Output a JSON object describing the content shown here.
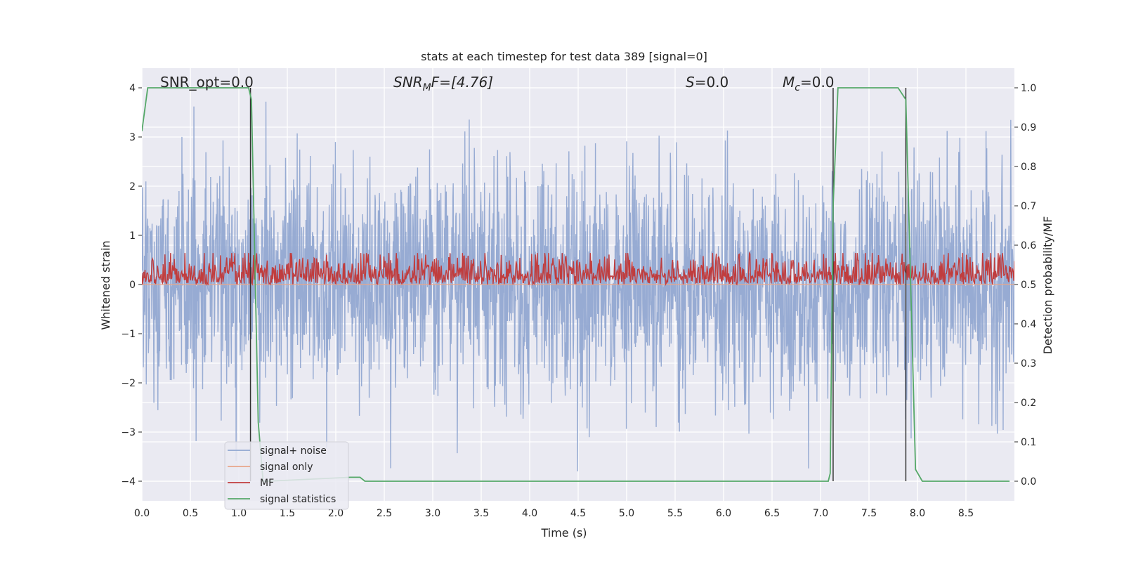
{
  "chart_data": {
    "type": "line",
    "title": "stats at each timestep for test data 389 [signal=0]",
    "xlabel": "Time (s)",
    "ylabel_left": "Whitened strain",
    "ylabel_right": "Detection probability/MF",
    "xlim": [
      0,
      9
    ],
    "ylim_left": [
      -4.4,
      4.4
    ],
    "ylim_right": [
      -0.05,
      1.05
    ],
    "x_ticks": [
      "0.0",
      "0.5",
      "1.0",
      "1.5",
      "2.0",
      "2.5",
      "3.0",
      "3.5",
      "4.0",
      "4.5",
      "5.0",
      "5.5",
      "6.0",
      "6.5",
      "7.0",
      "7.5",
      "8.0",
      "8.5"
    ],
    "x_tick_values": [
      0,
      0.5,
      1,
      1.5,
      2,
      2.5,
      3,
      3.5,
      4,
      4.5,
      5,
      5.5,
      6,
      6.5,
      7,
      7.5,
      8,
      8.5
    ],
    "y_left_ticks": [
      "−4",
      "−3",
      "−2",
      "−1",
      "0",
      "1",
      "2",
      "3",
      "4"
    ],
    "y_left_tick_values": [
      -4,
      -3,
      -2,
      -1,
      0,
      1,
      2,
      3,
      4
    ],
    "y_right_ticks": [
      "0.0",
      "0.1",
      "0.2",
      "0.3",
      "0.4",
      "0.5",
      "0.6",
      "0.7",
      "0.8",
      "0.9",
      "1.0"
    ],
    "y_right_tick_values": [
      0,
      0.1,
      0.2,
      0.3,
      0.4,
      0.5,
      0.6,
      0.7,
      0.8,
      0.9,
      1.0
    ],
    "grid": true,
    "annotations": {
      "snr_opt": "SNR_opt=0.0",
      "snr_mf_main": "SNR",
      "snr_mf_sub": "M",
      "snr_mf_rest": "F=[4.76]",
      "s_main": "S",
      "s_rest": "=0.0",
      "mc_main": "M",
      "mc_sub": "c",
      "mc_rest": "=0.0"
    },
    "legend": {
      "placement": "lower-left",
      "entries": [
        {
          "label": "signal+ noise",
          "color": "#92a8d1"
        },
        {
          "label": "signal only",
          "color": "#e8a58a"
        },
        {
          "label": "MF",
          "color": "#c03d3e"
        },
        {
          "label": "signal statistics",
          "color": "#55a868"
        }
      ]
    },
    "series": [
      {
        "name": "signal+ noise",
        "axis": "left",
        "color": "#92a8d1",
        "kind": "noise",
        "amplitude_range": [
          -3.8,
          3.9
        ]
      },
      {
        "name": "signal only",
        "axis": "left",
        "color": "#e8a58a",
        "values_constant": 0
      },
      {
        "name": "MF",
        "axis": "right",
        "color": "#c03d3e",
        "kind": "noise",
        "range": [
          0.5,
          0.58
        ]
      },
      {
        "name": "signal statistics",
        "axis": "right",
        "color": "#55a868",
        "x": [
          0.0,
          0.06,
          1.0,
          1.1,
          1.13,
          1.2,
          1.25,
          1.3,
          2.15,
          2.25,
          2.3,
          7.08,
          7.1,
          7.13,
          7.18,
          7.22,
          7.8,
          7.88,
          7.93,
          7.98,
          8.05,
          8.95
        ],
        "y": [
          0.89,
          1.0,
          1.0,
          1.0,
          0.97,
          0.15,
          0.0,
          0.0,
          0.01,
          0.01,
          0.0,
          0.0,
          0.02,
          0.7,
          1.0,
          1.0,
          1.0,
          0.97,
          0.5,
          0.03,
          0.0,
          0.0
        ]
      }
    ],
    "vertical_lines": {
      "color": "#333333",
      "x": [
        1.12,
        7.13,
        7.88
      ]
    }
  }
}
